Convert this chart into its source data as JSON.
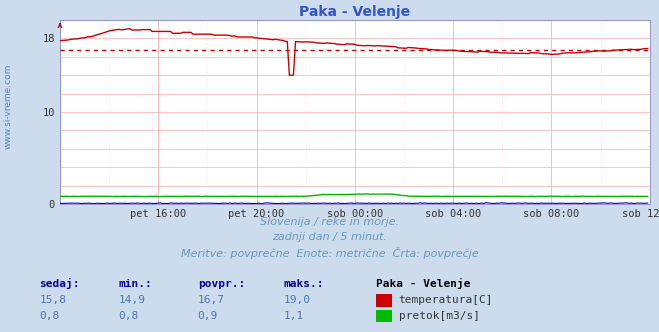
{
  "title": "Paka - Velenje",
  "title_color": "#3355cc",
  "bg_color": "#ccdcec",
  "plot_bg_color": "#ffffff",
  "watermark": "www.si-vreme.com",
  "xlim": [
    0,
    288
  ],
  "ylim": [
    0,
    20
  ],
  "ytick_vals": [
    0,
    2,
    4,
    6,
    8,
    10,
    12,
    14,
    16,
    18,
    20
  ],
  "ytick_show": [
    0,
    10,
    18
  ],
  "xtick_labels": [
    "pet 16:00",
    "pet 20:00",
    "sob 00:00",
    "sob 04:00",
    "sob 08:00",
    "sob 12:00"
  ],
  "xtick_positions": [
    48,
    96,
    144,
    192,
    240,
    288
  ],
  "avg_temp": 16.7,
  "temp_color": "#cc0000",
  "flow_color": "#00bb00",
  "height_color": "#0000cc",
  "grid_major_color": "#ffbbbb",
  "grid_minor_color": "#ffdddd",
  "subtitle1": "Slovenija / reke in morje.",
  "subtitle2": "zadnji dan / 5 minut.",
  "subtitle3": "Meritve: povprečne  Enote: metrične  Črta: povprečje",
  "sub_color": "#6699bb",
  "table_headers": [
    "sedaj:",
    "min.:",
    "povpr.:",
    "maks.:"
  ],
  "table_temp": [
    "15,8",
    "14,9",
    "16,7",
    "19,0"
  ],
  "table_flow": [
    "0,8",
    "0,8",
    "0,9",
    "1,1"
  ],
  "header_color": "#0000aa",
  "value_color": "#4477bb",
  "legend_title": "Paka - Velenje",
  "legend_items": [
    "temperatura[C]",
    "pretok[m3/s]"
  ],
  "legend_colors": [
    "#cc0000",
    "#00bb00"
  ]
}
